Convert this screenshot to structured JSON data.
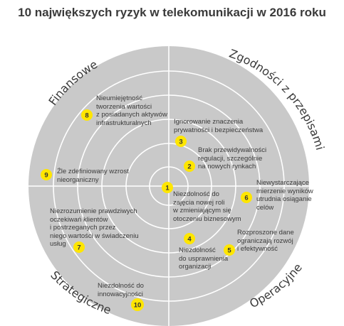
{
  "title": "10 największych ryzyk w telekomunikacji w 2016 roku",
  "colors": {
    "circle_bg": "#c9c9c9",
    "ring_line": "#ffffff",
    "marker": "#ffe600",
    "text": "#3a3a3a"
  },
  "quadrants": {
    "top_left": "Finansowe",
    "top_right": "Zgodności z przepisami",
    "bottom_left": "Strategiczne",
    "bottom_right": "Operacyjne"
  },
  "risks": [
    {
      "number": "1",
      "lines": [
        "Niezdolność do",
        "zajęcia nowej roli",
        "w zmieniającym się",
        "otoczeniu biznesowym"
      ]
    },
    {
      "number": "2",
      "lines": [
        "Brak przewidywalności",
        "regulacji, szczególnie",
        "na nowych rynkach"
      ]
    },
    {
      "number": "3",
      "lines": [
        "Ignorowanie znaczenia",
        "prywatności i bezpieczeństwa"
      ]
    },
    {
      "number": "4",
      "lines": [
        "Niezdolność",
        "do usprawnienia",
        "organizacji"
      ]
    },
    {
      "number": "5",
      "lines": [
        "Rozproszone dane",
        "ograniczają rozwój",
        "i efektywność"
      ]
    },
    {
      "number": "6",
      "lines": [
        "Niewystarczające",
        "mierzenie wyników",
        "utrudnia osiąganie",
        "celów"
      ]
    },
    {
      "number": "7",
      "lines": [
        "Niezrozumienie prawdziwych",
        "oczekiwań klientów",
        "i postrzeganych przez",
        "niego wartości w świadczeniu",
        "usług"
      ]
    },
    {
      "number": "8",
      "lines": [
        "Nieumiejętność",
        "tworzenia wartości",
        "z posiadanych aktywów",
        "infrastrukturalnych"
      ]
    },
    {
      "number": "9",
      "lines": [
        "Źle zdefiniowany wzrost",
        "nieorganiczny"
      ]
    },
    {
      "number": "10",
      "lines": [
        "Niezdolność do",
        "innowacyjności"
      ]
    }
  ]
}
